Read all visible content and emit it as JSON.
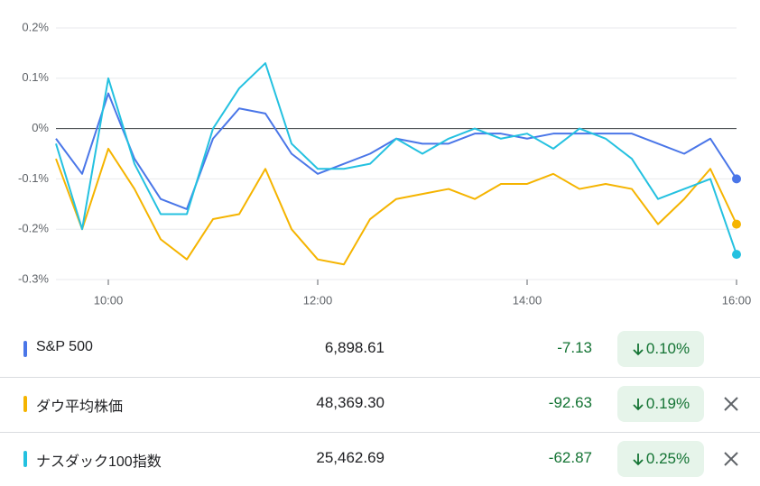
{
  "chart_data": {
    "type": "line",
    "x": [
      9.5,
      9.75,
      10,
      10.25,
      10.5,
      10.75,
      11,
      11.25,
      11.5,
      11.75,
      12,
      12.25,
      12.5,
      12.75,
      13,
      13.25,
      13.5,
      13.75,
      14,
      14.25,
      14.5,
      14.75,
      15,
      15.25,
      15.5,
      15.75,
      16
    ],
    "xlim": [
      9.5,
      16
    ],
    "xticks": [
      {
        "value": 10,
        "label": "10:00"
      },
      {
        "value": 12,
        "label": "12:00"
      },
      {
        "value": 14,
        "label": "14:00"
      },
      {
        "value": 16,
        "label": "16:00"
      }
    ],
    "ylim": [
      -0.3,
      0.2
    ],
    "yticks": [
      {
        "value": 0.2,
        "label": "0.2%"
      },
      {
        "value": 0.1,
        "label": "0.1%"
      },
      {
        "value": 0,
        "label": "0%"
      },
      {
        "value": -0.1,
        "label": "-0.1%"
      },
      {
        "value": -0.2,
        "label": "-0.2%"
      },
      {
        "value": -0.3,
        "label": "-0.3%"
      }
    ],
    "grid": true,
    "series": [
      {
        "name": "S&P 500",
        "color": "#4a76e8",
        "values": [
          -0.02,
          -0.09,
          0.07,
          -0.06,
          -0.14,
          -0.16,
          -0.02,
          0.04,
          0.03,
          -0.05,
          -0.09,
          -0.07,
          -0.05,
          -0.02,
          -0.03,
          -0.03,
          -0.01,
          -0.01,
          -0.02,
          -0.01,
          -0.01,
          -0.01,
          -0.01,
          -0.03,
          -0.05,
          -0.02,
          -0.1
        ]
      },
      {
        "name": "ダウ平均株価",
        "color": "#f5b400",
        "values": [
          -0.06,
          -0.2,
          -0.04,
          -0.12,
          -0.22,
          -0.26,
          -0.18,
          -0.17,
          -0.08,
          -0.2,
          -0.26,
          -0.27,
          -0.18,
          -0.14,
          -0.13,
          -0.12,
          -0.14,
          -0.11,
          -0.11,
          -0.09,
          -0.12,
          -0.11,
          -0.12,
          -0.19,
          -0.14,
          -0.08,
          -0.19
        ]
      },
      {
        "name": "ナスダック100指数",
        "color": "#24c1e0",
        "values": [
          -0.03,
          -0.2,
          0.1,
          -0.07,
          -0.17,
          -0.17,
          0,
          0.08,
          0.13,
          -0.03,
          -0.08,
          -0.08,
          -0.07,
          -0.02,
          -0.05,
          -0.02,
          0,
          -0.02,
          -0.01,
          -0.04,
          0,
          -0.02,
          -0.06,
          -0.14,
          -0.12,
          -0.1,
          -0.25
        ]
      }
    ]
  },
  "table": {
    "rows": [
      {
        "price": "6,898.61",
        "change": "-7.13",
        "percent": "0.10%"
      },
      {
        "price": "48,369.30",
        "change": "-92.63",
        "percent": "0.19%"
      },
      {
        "price": "25,462.69",
        "change": "-62.87",
        "percent": "0.25%"
      }
    ]
  }
}
